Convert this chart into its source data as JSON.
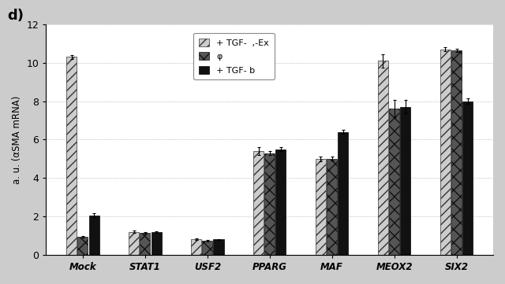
{
  "categories": [
    "Mock",
    "STAT1",
    "USF2",
    "PPARG",
    "MAF",
    "MEOX2",
    "SIX2"
  ],
  "series": [
    {
      "label": "+ TGF-  ,-Ex",
      "values": [
        10.3,
        1.2,
        0.8,
        5.4,
        5.0,
        10.1,
        10.7
      ],
      "errors": [
        0.1,
        0.05,
        0.04,
        0.2,
        0.12,
        0.35,
        0.1
      ],
      "color": "#cccccc",
      "hatch": "///",
      "edgecolor": "#333333"
    },
    {
      "label": "φ",
      "values": [
        0.95,
        1.15,
        0.75,
        5.3,
        5.0,
        7.6,
        10.65
      ],
      "errors": [
        0.05,
        0.05,
        0.04,
        0.1,
        0.1,
        0.45,
        0.08
      ],
      "color": "#555555",
      "hatch": "xx",
      "edgecolor": "#111111"
    },
    {
      "label": "+ TGF- b",
      "values": [
        2.05,
        1.2,
        0.8,
        5.5,
        6.4,
        7.7,
        8.0
      ],
      "errors": [
        0.1,
        0.04,
        0.03,
        0.1,
        0.1,
        0.35,
        0.15
      ],
      "color": "#111111",
      "hatch": "",
      "edgecolor": "#000000"
    }
  ],
  "ylabel": "a. u. (αSMA mRNA)",
  "ylim": [
    0,
    12
  ],
  "yticks": [
    0,
    2,
    4,
    6,
    8,
    10,
    12
  ],
  "panel_label": "d)",
  "plot_bg_color": "#ffffff",
  "fig_bg_color": "#cccccc",
  "legend_loc": "upper right",
  "bar_width": 0.18,
  "wide_bar_width": 0.18,
  "grid_color": "#999999",
  "grid_style": ":"
}
